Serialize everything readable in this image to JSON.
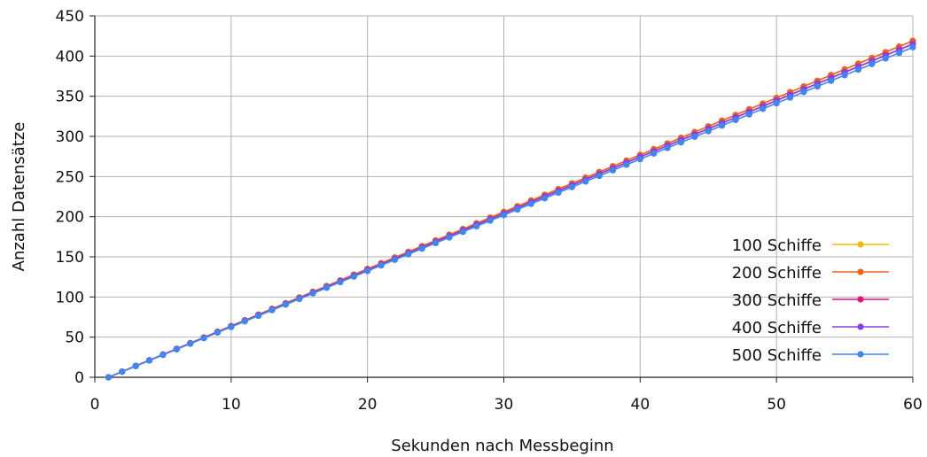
{
  "chart_data": {
    "type": "line",
    "title": "",
    "xlabel": "Sekunden nach Messbeginn",
    "ylabel": "Anzahl Datensätze",
    "xlim": [
      0,
      60
    ],
    "ylim": [
      0,
      450
    ],
    "xticks": [
      0,
      10,
      20,
      30,
      40,
      50,
      60
    ],
    "yticks": [
      0,
      50,
      100,
      150,
      200,
      250,
      300,
      350,
      400,
      450
    ],
    "grid": true,
    "legend_position": "bottom-right",
    "x_start": 1,
    "x_end": 60,
    "series": [
      {
        "name": "100 Schiffe",
        "color": "#f5b800",
        "start": 0,
        "end": 419
      },
      {
        "name": "200 Schiffe",
        "color": "#f06022",
        "start": 0,
        "end": 419
      },
      {
        "name": "300 Schiffe",
        "color": "#e8127a",
        "start": 0,
        "end": 415
      },
      {
        "name": "400 Schiffe",
        "color": "#8a3de6",
        "start": 0,
        "end": 415
      },
      {
        "name": "500 Schiffe",
        "color": "#3f86f0",
        "start": 0,
        "end": 411
      }
    ]
  }
}
